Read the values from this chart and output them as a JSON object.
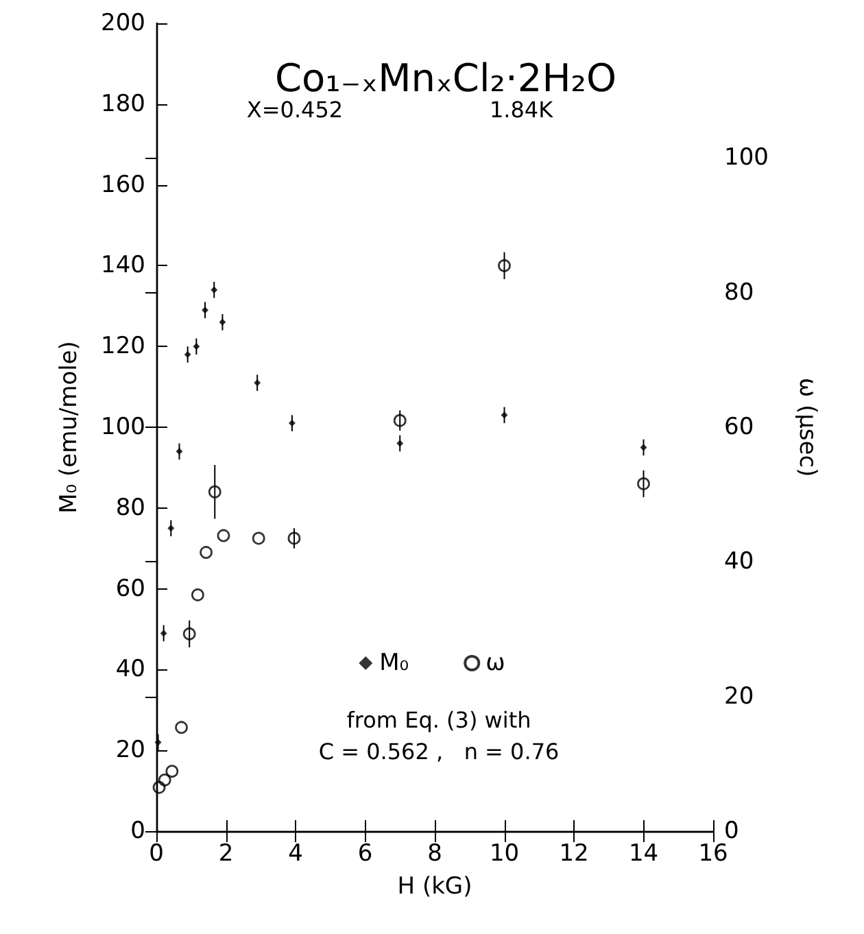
{
  "chart_data": {
    "type": "scatter",
    "title": "Co₁₋ₓMnₓCl₂·2H₂O",
    "xlabel": "H (kG)",
    "ylabel": "M₀ (emu/mole)",
    "y2label": "ω (μsec)",
    "annotations": [
      "X=0.452",
      "1.84K",
      "from Eq. (3) with",
      "C = 0.562 ,   n = 0.76"
    ],
    "xlim": [
      0,
      16
    ],
    "xticks": [
      0,
      2,
      4,
      6,
      8,
      10,
      12,
      14,
      16
    ],
    "ylim": [
      0,
      200
    ],
    "yticks": [
      0,
      20,
      40,
      60,
      80,
      100,
      120,
      140,
      160,
      180,
      200
    ],
    "y2lim": [
      0,
      120
    ],
    "y2ticks": [
      0,
      20,
      40,
      60,
      80,
      100
    ],
    "grid": false,
    "legend": "bottom",
    "series": [
      {
        "name": "M₀",
        "color": "#000000",
        "marker": "diamond",
        "x": [
          0.05,
          0.21,
          0.42,
          0.66,
          0.9,
          1.15,
          1.4,
          1.66,
          1.9,
          2.9,
          3.9,
          7,
          10,
          14
        ],
        "values": [
          22,
          49,
          75,
          94,
          118,
          120,
          129,
          134,
          126,
          111,
          101,
          96,
          103,
          95
        ],
        "errors": [
          2,
          2,
          2,
          2,
          2,
          2,
          2,
          2,
          2,
          2,
          2,
          2,
          2,
          2
        ]
      },
      {
        "name": "ω",
        "color": "#000000",
        "marker": "circle",
        "axis": "y2",
        "x": [
          0.08,
          0.24,
          0.45,
          0.72,
          0.95,
          1.19,
          1.43,
          1.68,
          1.93,
          2.94,
          3.96,
          7,
          10,
          14
        ],
        "values": [
          6.5,
          7.6,
          8.9,
          15.4,
          29.3,
          35.1,
          41.4,
          50.4,
          43.9,
          43.5,
          43.5,
          61,
          84,
          51.6
        ],
        "errors": [
          null,
          null,
          null,
          null,
          2,
          null,
          null,
          4,
          null,
          null,
          1.5,
          1.5,
          2,
          2
        ]
      }
    ]
  }
}
